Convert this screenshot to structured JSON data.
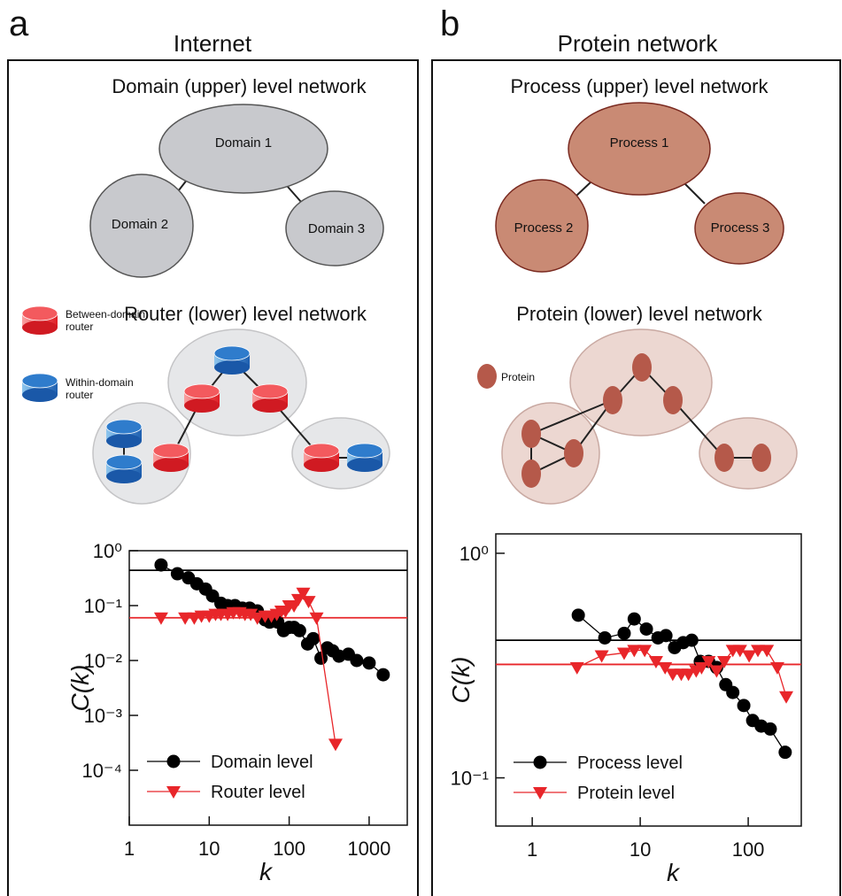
{
  "panels": [
    {
      "letter": "a",
      "title": "Internet",
      "upper_title": "Domain (upper) level network",
      "upper_nodes": [
        "Domain 1",
        "Domain 2",
        "Domain 3"
      ],
      "lower_title": "Router (lower) level network",
      "legend": [
        [
          "Between-domain",
          "router"
        ],
        [
          "Within-domain",
          "router"
        ]
      ]
    },
    {
      "letter": "b",
      "title": "Protein network",
      "upper_title": "Process (upper) level network",
      "upper_nodes": [
        "Process 1",
        "Process 2",
        "Process 3"
      ],
      "lower_title": "Protein (lower) level network",
      "legend": [
        [
          "Protein"
        ]
      ]
    }
  ],
  "chart_data": [
    {
      "type": "line",
      "log_x": true,
      "log_y": true,
      "xlabel": "k",
      "ylabel": "C(k)",
      "legend_position": "lower left",
      "xlim": [
        1,
        3000
      ],
      "ylim": [
        1e-05,
        1
      ],
      "xticks": [
        1,
        10,
        100,
        1000
      ],
      "yticks": [
        {
          "value": 1,
          "label": "10⁰"
        },
        {
          "value": 0.1,
          "label": "10⁻¹"
        },
        {
          "value": 0.01,
          "label": "10⁻²"
        },
        {
          "value": 0.001,
          "label": "10⁻³"
        },
        {
          "value": 0.0001,
          "label": "10⁻⁴"
        }
      ],
      "hlines": [
        {
          "value": 0.44,
          "color": "#000000"
        },
        {
          "value": 0.06,
          "color": "#e8262a"
        }
      ],
      "series": [
        {
          "name": "Domain level",
          "color": "#000000",
          "marker": "circle",
          "x": [
            2.5,
            4,
            5.5,
            7,
            9,
            11,
            14,
            17,
            21,
            26,
            32,
            40,
            50,
            57,
            72,
            85,
            100,
            115,
            135,
            170,
            200,
            250,
            300,
            350,
            420,
            550,
            700,
            1000,
            1500
          ],
          "values": [
            0.55,
            0.38,
            0.32,
            0.25,
            0.2,
            0.15,
            0.11,
            0.1,
            0.1,
            0.09,
            0.09,
            0.08,
            0.055,
            0.05,
            0.05,
            0.035,
            0.04,
            0.04,
            0.035,
            0.02,
            0.025,
            0.011,
            0.017,
            0.015,
            0.012,
            0.013,
            0.01,
            0.009,
            0.0055
          ]
        },
        {
          "name": "Router level",
          "color": "#e8262a",
          "marker": "triangle",
          "x": [
            2.5,
            5,
            6.5,
            8,
            10,
            12,
            14,
            17,
            20,
            24,
            28,
            33,
            40,
            50,
            60,
            70,
            80,
            90,
            100,
            115,
            130,
            150,
            175,
            220,
            380
          ],
          "values": [
            0.06,
            0.06,
            0.06,
            0.065,
            0.065,
            0.07,
            0.07,
            0.07,
            0.075,
            0.075,
            0.07,
            0.07,
            0.06,
            0.065,
            0.065,
            0.07,
            0.08,
            0.08,
            0.1,
            0.1,
            0.13,
            0.17,
            0.12,
            0.06,
            0.0003
          ]
        }
      ]
    },
    {
      "type": "line",
      "log_x": true,
      "log_y": true,
      "xlabel": "k",
      "ylabel": "C(k)",
      "legend_position": "lower left",
      "xlim": [
        0.46,
        310
      ],
      "ylim": [
        0.061,
        1.22
      ],
      "xticks": [
        1,
        10,
        100
      ],
      "yticks": [
        {
          "value": 1,
          "label": "10⁰"
        },
        {
          "value": 0.1,
          "label": "10⁻¹"
        }
      ],
      "hlines": [
        {
          "value": 0.41,
          "color": "#000000"
        },
        {
          "value": 0.32,
          "color": "#e8262a"
        }
      ],
      "series": [
        {
          "name": "Process  level",
          "color": "#000000",
          "marker": "circle",
          "x": [
            2.67,
            4.7,
            7.1,
            8.8,
            11.4,
            14.6,
            17.3,
            20.8,
            25,
            30,
            36,
            43,
            51,
            62,
            72,
            91,
            110,
            132,
            160,
            220
          ],
          "values": [
            0.53,
            0.42,
            0.44,
            0.51,
            0.46,
            0.42,
            0.43,
            0.38,
            0.4,
            0.41,
            0.33,
            0.33,
            0.31,
            0.26,
            0.24,
            0.21,
            0.18,
            0.17,
            0.165,
            0.13
          ]
        },
        {
          "name": "Protein level",
          "color": "#e8262a",
          "marker": "triangle",
          "x": [
            2.6,
            4.4,
            7.1,
            8.8,
            11,
            14,
            17,
            20,
            24,
            28,
            33,
            37,
            43,
            51,
            60,
            72,
            84,
            102,
            123,
            149,
            186,
            225
          ],
          "values": [
            0.31,
            0.35,
            0.36,
            0.37,
            0.37,
            0.33,
            0.31,
            0.29,
            0.29,
            0.29,
            0.3,
            0.31,
            0.33,
            0.3,
            0.33,
            0.37,
            0.37,
            0.35,
            0.37,
            0.37,
            0.31,
            0.23
          ]
        }
      ]
    }
  ]
}
